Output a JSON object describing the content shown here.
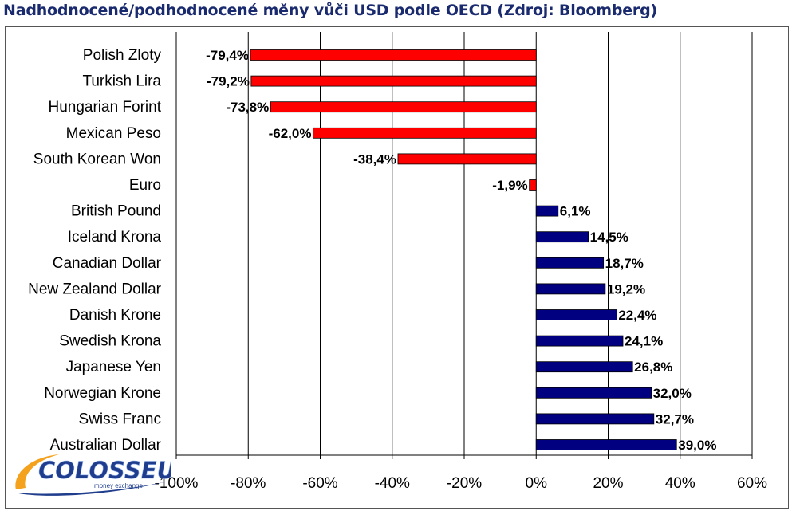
{
  "title": "Nadhodnocené/podhodnocené měny vůči USD podle OECD (Zdroj: Bloomberg)",
  "logo": {
    "text": "COLOSSEUM",
    "subtext": "money exchange"
  },
  "colors": {
    "negative_bar": "#ff0000",
    "positive_bar": "#000080",
    "title": "#1a2a6e",
    "grid": "#000000",
    "logo_blue": "#1f3d8c",
    "logo_orange": "#f4a21d"
  },
  "chart_data": {
    "type": "bar",
    "orientation": "horizontal",
    "title": "Nadhodnocené/podhodnocené měny vůči USD podle OECD (Zdroj: Bloomberg)",
    "xlim": [
      -100,
      60
    ],
    "xticks": [
      -100,
      -80,
      -60,
      -40,
      -20,
      0,
      20,
      40,
      60
    ],
    "xtick_labels": [
      "-100%",
      "-80%",
      "-60%",
      "-40%",
      "-20%",
      "0%",
      "20%",
      "40%",
      "60%"
    ],
    "grid": "vertical gridlines at each tick",
    "legend": "none",
    "categories": [
      "Polish Zloty",
      "Turkish Lira",
      "Hungarian Forint",
      "Mexican Peso",
      "South Korean Won",
      "Euro",
      "British Pound",
      "Iceland Krona",
      "Canadian Dollar",
      "New Zealand Dollar",
      "Danish Krone",
      "Swedish Krona",
      "Japanese Yen",
      "Norwegian Krone",
      "Swiss Franc",
      "Australian Dollar"
    ],
    "values": [
      -79.4,
      -79.2,
      -73.8,
      -62.0,
      -38.4,
      -1.9,
      6.1,
      14.5,
      18.7,
      19.2,
      22.4,
      24.1,
      26.8,
      32.0,
      32.7,
      39.0
    ],
    "value_labels": [
      "-79,4%",
      "-79,2%",
      "-73,8%",
      "-62,0%",
      "-38,4%",
      "-1,9%",
      "6,1%",
      "14,5%",
      "18,7%",
      "19,2%",
      "22,4%",
      "24,1%",
      "26,8%",
      "32,0%",
      "32,7%",
      "39,0%"
    ]
  }
}
